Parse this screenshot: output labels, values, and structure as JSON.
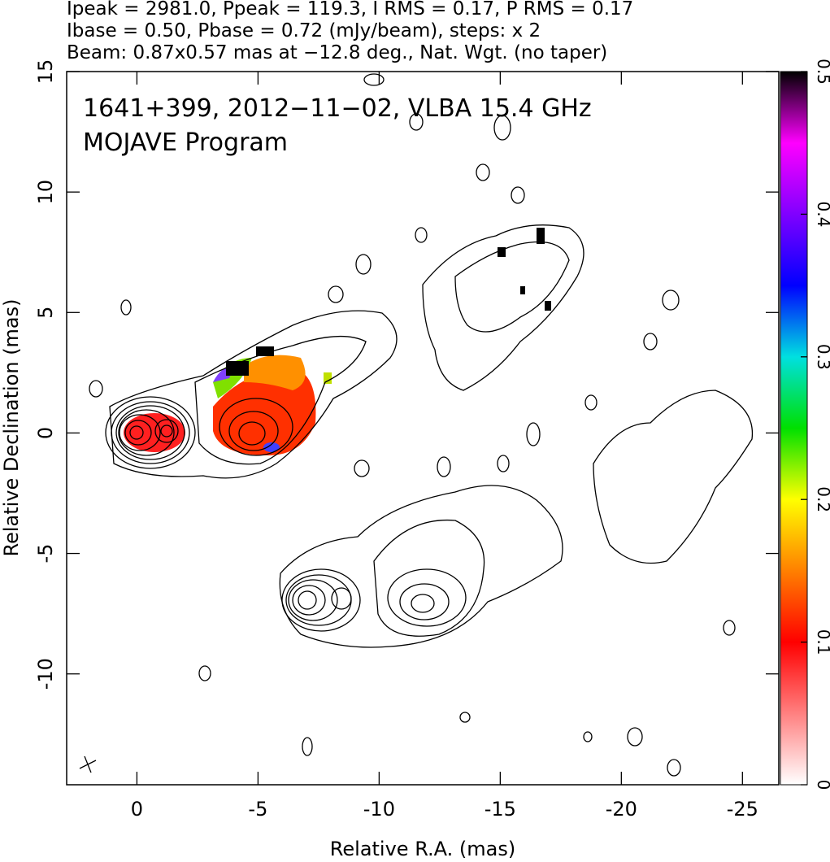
{
  "chart_data": {
    "type": "contour",
    "title_lines": [
      "Ipeak = 2981.0, Ppeak = 119.3, I RMS = 0.17, P RMS = 0.17",
      "Ibase = 0.50, Pbase = 0.72 (mJy/beam), steps: x 2",
      "Beam: 0.87x0.57 mas at −12.8 deg., Nat. Wgt. (no taper)"
    ],
    "annotations": [
      "1641+399, 2012−11−02, VLBA 15.4 GHz",
      "MOJAVE Program"
    ],
    "x_label": "Relative R.A. (mas)",
    "y_label": "Relative Declination (mas)",
    "xlim": [
      2.9,
      -26.5
    ],
    "xticks": [
      0,
      -5,
      -10,
      -15,
      -20,
      -25
    ],
    "ylim": [
      -14.6,
      15
    ],
    "yticks": [
      -10,
      -5,
      0,
      5,
      10,
      15
    ],
    "clim": [
      0,
      0.5
    ],
    "cticks": [
      0,
      0.1,
      0.2,
      0.3,
      0.4,
      0.5
    ]
  }
}
